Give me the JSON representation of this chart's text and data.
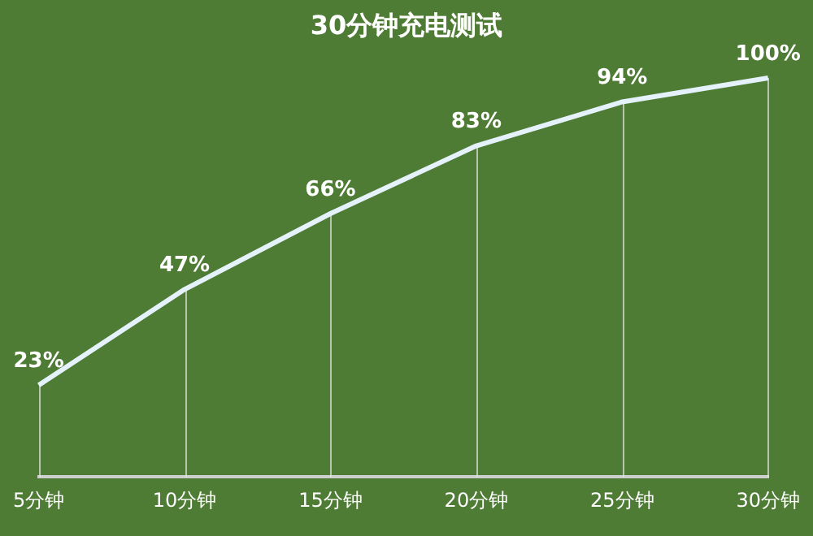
{
  "chart_data": {
    "type": "line",
    "title": "30分钟充电测试",
    "categories": [
      "5分钟",
      "10分钟",
      "15分钟",
      "20分钟",
      "25分钟",
      "30分钟"
    ],
    "values": [
      23,
      47,
      66,
      83,
      94,
      100
    ],
    "value_labels": [
      "23%",
      "47%",
      "66%",
      "83%",
      "94%",
      "100%"
    ],
    "color": "#e6f2fb",
    "marker": "none",
    "line_style": "solid",
    "grid": "x",
    "legend": false,
    "tick_labels": "x"
  }
}
